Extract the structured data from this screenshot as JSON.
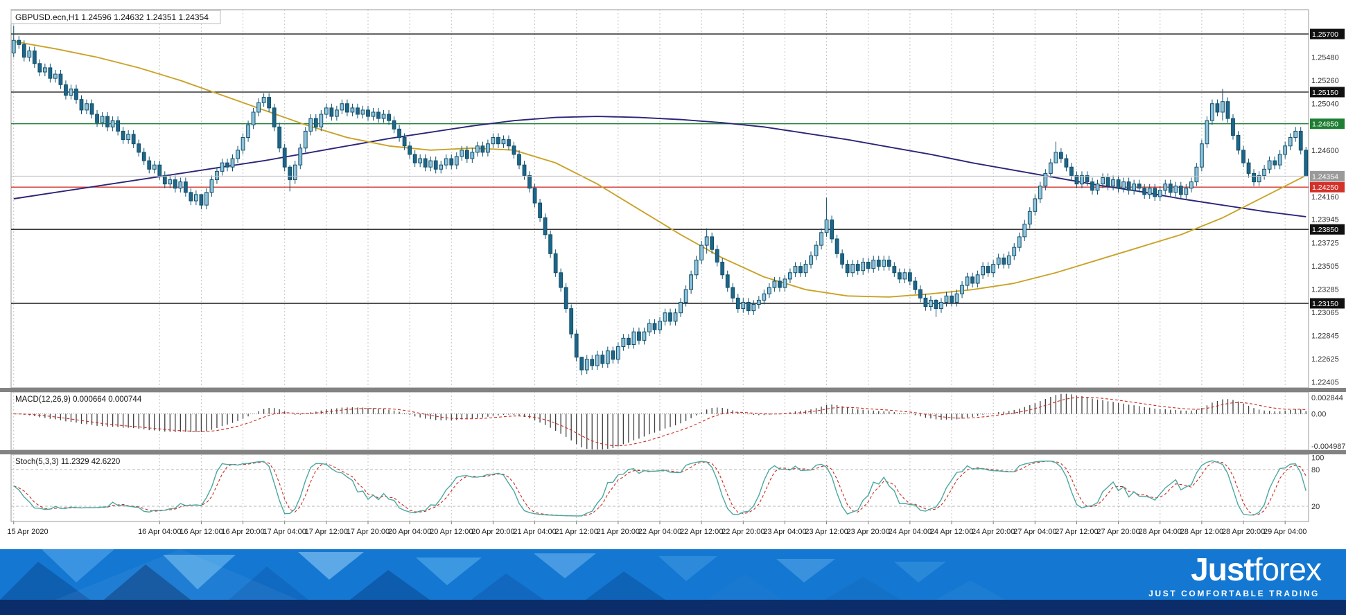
{
  "header": {
    "title": "GBPUSD.ecn,H1  1.24596 1.24632 1.24351 1.24354",
    "symbol": "GBPUSD.ecn",
    "timeframe": "H1",
    "ohlc": {
      "open": "1.24596",
      "high": "1.24632",
      "low": "1.24351",
      "close": "1.24354"
    }
  },
  "chart_data": {
    "type": "candlestick",
    "title": "GBPUSD.ecn,H1",
    "legend_position": "none",
    "grid": "vertical-dashed",
    "main": {
      "value_range": [
        1.2235,
        1.2593
      ],
      "first_open": 1.2552,
      "default_wick": 0.0004,
      "closes": [
        1.2564,
        1.256,
        1.2548,
        1.2554,
        1.2542,
        1.2534,
        1.2538,
        1.2528,
        1.2532,
        1.2522,
        1.2512,
        1.2518,
        1.2508,
        1.2498,
        1.2504,
        1.2494,
        1.2486,
        1.2492,
        1.2482,
        1.2488,
        1.2478,
        1.247,
        1.2475,
        1.2466,
        1.2458,
        1.245,
        1.2442,
        1.2446,
        1.2436,
        1.2428,
        1.2432,
        1.2424,
        1.243,
        1.242,
        1.2412,
        1.2418,
        1.2408,
        1.242,
        1.2432,
        1.244,
        1.2448,
        1.2444,
        1.2452,
        1.246,
        1.2472,
        1.2484,
        1.2496,
        1.2505,
        1.251,
        1.25,
        1.2482,
        1.2462,
        1.2444,
        1.2432,
        1.2446,
        1.2462,
        1.2478,
        1.249,
        1.2482,
        1.2494,
        1.25,
        1.2492,
        1.2498,
        1.2504,
        1.2496,
        1.25,
        1.2494,
        1.2498,
        1.2492,
        1.2496,
        1.249,
        1.2494,
        1.2488,
        1.248,
        1.2472,
        1.2464,
        1.2456,
        1.2448,
        1.2452,
        1.2444,
        1.245,
        1.2442,
        1.2446,
        1.2452,
        1.2446,
        1.2454,
        1.246,
        1.2452,
        1.2458,
        1.2464,
        1.2458,
        1.2466,
        1.2472,
        1.2466,
        1.247,
        1.2464,
        1.2456,
        1.2446,
        1.2436,
        1.2424,
        1.241,
        1.2396,
        1.238,
        1.2362,
        1.2344,
        1.233,
        1.231,
        1.2286,
        1.2264,
        1.2252,
        1.2262,
        1.2256,
        1.2266,
        1.2258,
        1.227,
        1.2262,
        1.2274,
        1.2282,
        1.2276,
        1.2288,
        1.228,
        1.2288,
        1.2296,
        1.229,
        1.2298,
        1.2306,
        1.2298,
        1.2306,
        1.2316,
        1.2328,
        1.2342,
        1.2356,
        1.237,
        1.2378,
        1.2366,
        1.2354,
        1.2342,
        1.233,
        1.232,
        1.231,
        1.2316,
        1.2308,
        1.2314,
        1.2318,
        1.2324,
        1.233,
        1.2336,
        1.233,
        1.2338,
        1.2344,
        1.235,
        1.2344,
        1.2352,
        1.236,
        1.237,
        1.2382,
        1.2394,
        1.2376,
        1.2362,
        1.2352,
        1.2344,
        1.2352,
        1.2346,
        1.2354,
        1.2348,
        1.2356,
        1.235,
        1.2356,
        1.235,
        1.2344,
        1.2338,
        1.2344,
        1.2336,
        1.2328,
        1.232,
        1.2312,
        1.2318,
        1.231,
        1.2316,
        1.2322,
        1.2316,
        1.2324,
        1.2332,
        1.234,
        1.2334,
        1.2342,
        1.235,
        1.2344,
        1.2352,
        1.2358,
        1.2352,
        1.236,
        1.2368,
        1.2378,
        1.239,
        1.2402,
        1.2414,
        1.2426,
        1.2438,
        1.2448,
        1.2458,
        1.2452,
        1.2444,
        1.2436,
        1.2428,
        1.2436,
        1.243,
        1.2422,
        1.2428,
        1.2434,
        1.2426,
        1.2432,
        1.2424,
        1.243,
        1.2422,
        1.2428,
        1.2424,
        1.2418,
        1.2424,
        1.2416,
        1.2422,
        1.2428,
        1.242,
        1.2426,
        1.2418,
        1.2424,
        1.243,
        1.2444,
        1.2466,
        1.2488,
        1.2504,
        1.2496,
        1.2506,
        1.249,
        1.2474,
        1.246,
        1.2448,
        1.2438,
        1.243,
        1.2436,
        1.2442,
        1.245,
        1.2446,
        1.2456,
        1.2464,
        1.2472,
        1.2478,
        1.246,
        1.24354
      ],
      "wick_overrides": {
        "0": [
          1.2578,
          1.2548
        ],
        "36": [
          1.2416,
          1.2404
        ],
        "53": [
          1.2446,
          1.2421
        ],
        "109": [
          1.2263,
          1.2247
        ],
        "133": [
          1.2386,
          1.2362
        ],
        "156": [
          1.2415,
          1.2378
        ],
        "177": [
          1.2319,
          1.2302
        ],
        "200": [
          1.2468,
          1.2448
        ],
        "232": [
          1.2518,
          1.2488
        ],
        "248": [
          1.24632,
          1.24351
        ]
      },
      "candle_colors": {
        "bull_fill": "#8fc1d9",
        "bear_fill": "#1f6587",
        "outline": "#0e4f6b"
      },
      "ma_fast": {
        "name": "gold-moving-average",
        "color": "#C9A227",
        "points": [
          [
            0,
            1.2563
          ],
          [
            8,
            1.2556
          ],
          [
            16,
            1.2548
          ],
          [
            24,
            1.2538
          ],
          [
            32,
            1.2526
          ],
          [
            40,
            1.2512
          ],
          [
            48,
            1.2498
          ],
          [
            56,
            1.2484
          ],
          [
            64,
            1.2472
          ],
          [
            72,
            1.2464
          ],
          [
            80,
            1.246
          ],
          [
            88,
            1.2462
          ],
          [
            96,
            1.246
          ],
          [
            104,
            1.2448
          ],
          [
            112,
            1.2428
          ],
          [
            120,
            1.2404
          ],
          [
            128,
            1.238
          ],
          [
            136,
            1.2358
          ],
          [
            144,
            1.234
          ],
          [
            152,
            1.2328
          ],
          [
            160,
            1.2322
          ],
          [
            168,
            1.2321
          ],
          [
            176,
            1.2324
          ],
          [
            184,
            1.2328
          ],
          [
            192,
            1.2334
          ],
          [
            200,
            1.2344
          ],
          [
            208,
            1.2356
          ],
          [
            216,
            1.2368
          ],
          [
            224,
            1.238
          ],
          [
            232,
            1.2396
          ],
          [
            240,
            1.2416
          ],
          [
            248,
            1.2436
          ]
        ]
      },
      "ma_slow": {
        "name": "navy-moving-average",
        "color": "#2b2577",
        "points": [
          [
            0,
            1.2414
          ],
          [
            8,
            1.242
          ],
          [
            16,
            1.2426
          ],
          [
            24,
            1.2432
          ],
          [
            32,
            1.2438
          ],
          [
            40,
            1.2444
          ],
          [
            48,
            1.245
          ],
          [
            56,
            1.2457
          ],
          [
            64,
            1.2464
          ],
          [
            72,
            1.2471
          ],
          [
            80,
            1.2477
          ],
          [
            88,
            1.2483
          ],
          [
            96,
            1.2488
          ],
          [
            104,
            1.2491
          ],
          [
            112,
            1.2492
          ],
          [
            120,
            1.2491
          ],
          [
            128,
            1.2489
          ],
          [
            136,
            1.2486
          ],
          [
            144,
            1.2482
          ],
          [
            152,
            1.2476
          ],
          [
            160,
            1.247
          ],
          [
            168,
            1.2463
          ],
          [
            176,
            1.2456
          ],
          [
            184,
            1.2448
          ],
          [
            192,
            1.2441
          ],
          [
            200,
            1.2434
          ],
          [
            208,
            1.2427
          ],
          [
            216,
            1.2421
          ],
          [
            224,
            1.2414
          ],
          [
            232,
            1.2408
          ],
          [
            240,
            1.2402
          ],
          [
            248,
            1.2397
          ]
        ]
      },
      "hlines": [
        {
          "value": 1.257,
          "color": "#1a1a1a",
          "badge": "#111111"
        },
        {
          "value": 1.2515,
          "color": "#1a1a1a",
          "badge": "#111111"
        },
        {
          "value": 1.2485,
          "color": "#1e7e34",
          "badge": "#1e7e34"
        },
        {
          "value": 1.2425,
          "color": "#d3322a",
          "badge": "#d3322a"
        },
        {
          "value": 1.2385,
          "color": "#1a1a1a",
          "badge": "#111111"
        },
        {
          "value": 1.2315,
          "color": "#1a1a1a",
          "badge": "#111111"
        }
      ],
      "current_price": {
        "value": 1.24354,
        "line_color": "#c0c0c0",
        "badge_color": "#9a9a9a"
      },
      "axis_ticks": [
        1.2548,
        1.2526,
        1.2504,
        1.246,
        1.2416,
        1.23945,
        1.23725,
        1.23505,
        1.23285,
        1.23065,
        1.22845,
        1.22625,
        1.22405
      ]
    },
    "macd": {
      "label": "MACD(12,26,9) 0.000664 0.000744",
      "params": [
        12,
        26,
        9
      ],
      "values_shown": [
        "0.000664",
        "0.000744"
      ],
      "range": [
        -0.0053,
        0.0032
      ],
      "axis_labels": {
        "top": "0.002844",
        "zero": "0.00",
        "bottom": "-0.004987"
      },
      "bar_color": "#3f3f3f",
      "signal_color": "#cc2a1f"
    },
    "stoch": {
      "label": "Stoch(5,3,3) 11.2329 42.6220",
      "params": [
        5,
        3,
        3
      ],
      "values_shown": [
        "11.2329",
        "42.6220"
      ],
      "range": [
        -5,
        105
      ],
      "levels": [
        20,
        80
      ],
      "axis_labels": [
        "100",
        "80",
        "20"
      ],
      "main_color": "#4aa8a0",
      "signal_color": "#cc2a1f"
    },
    "x_axis": [
      [
        0,
        "15 Apr 2020"
      ],
      [
        28,
        "16 Apr 04:00"
      ],
      [
        36,
        "16 Apr 12:00"
      ],
      [
        44,
        "16 Apr 20:00"
      ],
      [
        52,
        "17 Apr 04:00"
      ],
      [
        60,
        "17 Apr 12:00"
      ],
      [
        68,
        "17 Apr 20:00"
      ],
      [
        76,
        "20 Apr 04:00"
      ],
      [
        84,
        "20 Apr 12:00"
      ],
      [
        92,
        "20 Apr 20:00"
      ],
      [
        100,
        "21 Apr 04:00"
      ],
      [
        108,
        "21 Apr 12:00"
      ],
      [
        116,
        "21 Apr 20:00"
      ],
      [
        124,
        "22 Apr 04:00"
      ],
      [
        132,
        "22 Apr 12:00"
      ],
      [
        140,
        "22 Apr 20:00"
      ],
      [
        148,
        "23 Apr 04:00"
      ],
      [
        156,
        "23 Apr 12:00"
      ],
      [
        164,
        "23 Apr 20:00"
      ],
      [
        172,
        "24 Apr 04:00"
      ],
      [
        180,
        "24 Apr 12:00"
      ],
      [
        188,
        "24 Apr 20:00"
      ],
      [
        196,
        "27 Apr 04:00"
      ],
      [
        204,
        "27 Apr 12:00"
      ],
      [
        212,
        "27 Apr 20:00"
      ],
      [
        220,
        "28 Apr 04:00"
      ],
      [
        228,
        "28 Apr 12:00"
      ],
      [
        236,
        "28 Apr 20:00"
      ],
      [
        244,
        "29 Apr 04:00"
      ]
    ]
  },
  "banner": {
    "logo_part1": "Just",
    "logo_part2": "forex",
    "tagline": "JUST COMFORTABLE TRADING",
    "bg_color": "#1478d2",
    "strip_color": "#0b2d69"
  }
}
